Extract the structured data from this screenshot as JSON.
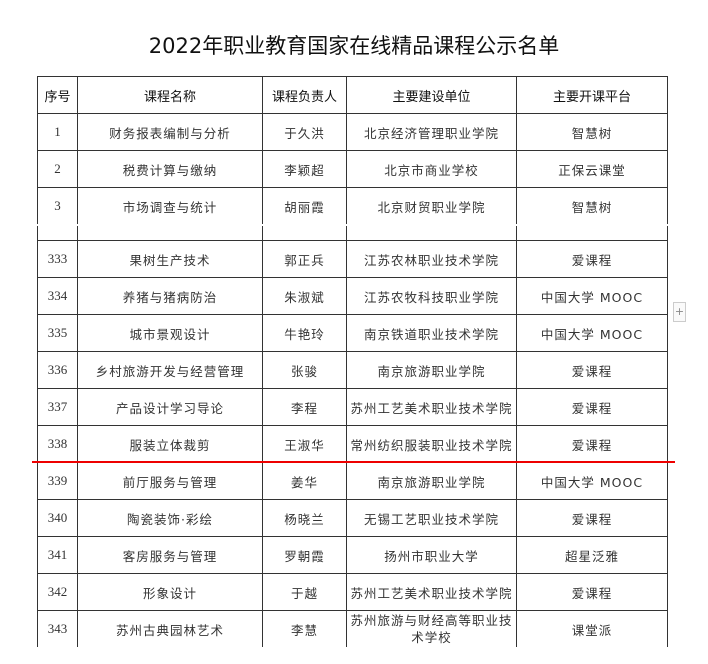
{
  "title": "2022年职业教育国家在线精品课程公示名单",
  "columns": [
    "序号",
    "课程名称",
    "课程负责人",
    "主要建设单位",
    "主要开课平台"
  ],
  "rows_top": [
    [
      "1",
      "财务报表编制与分析",
      "于久洪",
      "北京经济管理职业学院",
      "智慧树"
    ],
    [
      "2",
      "税费计算与缴纳",
      "李颖超",
      "北京市商业学校",
      "正保云课堂"
    ],
    [
      "3",
      "市场调查与统计",
      "胡丽霞",
      "北京财贸职业学院",
      "智慧树"
    ]
  ],
  "rows_bottom": [
    [
      "333",
      "果树生产技术",
      "郭正兵",
      "江苏农林职业技术学院",
      "爱课程"
    ],
    [
      "334",
      "养猪与猪病防治",
      "朱淑斌",
      "江苏农牧科技职业学院",
      "中国大学 MOOC"
    ],
    [
      "335",
      "城市景观设计",
      "牛艳玲",
      "南京铁道职业技术学院",
      "中国大学 MOOC"
    ],
    [
      "336",
      "乡村旅游开发与经营管理",
      "张骏",
      "南京旅游职业学院",
      "爱课程"
    ],
    [
      "337",
      "产品设计学习导论",
      "李程",
      "苏州工艺美术职业技术学院",
      "爱课程"
    ],
    [
      "338",
      "服装立体裁剪",
      "王淑华",
      "常州纺织服装职业技术学院",
      "爱课程"
    ],
    [
      "339",
      "前厅服务与管理",
      "姜华",
      "南京旅游职业学院",
      "中国大学 MOOC"
    ],
    [
      "340",
      "陶瓷装饰·彩绘",
      "杨晓兰",
      "无锡工艺职业技术学院",
      "爱课程"
    ],
    [
      "341",
      "客房服务与管理",
      "罗朝霞",
      "扬州市职业大学",
      "超星泛雅"
    ],
    [
      "342",
      "形象设计",
      "于越",
      "苏州工艺美术职业技术学院",
      "爱课程"
    ],
    [
      "343",
      "苏州古典园林艺术",
      "李慧",
      "苏州旅游与财经高等职业技术学校",
      "课堂派"
    ]
  ],
  "expand_button": "+",
  "colors": {
    "highlight_line": "#e00000"
  }
}
